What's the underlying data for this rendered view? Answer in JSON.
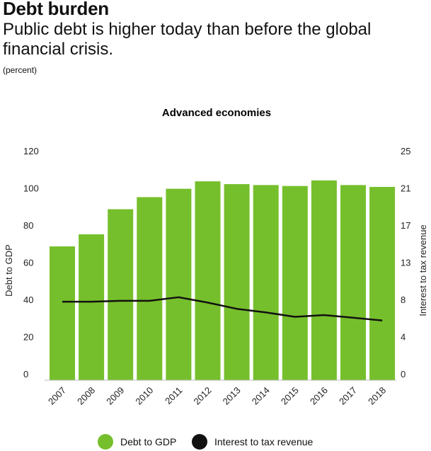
{
  "header": {
    "title": "Debt burden",
    "subtitle": "Public debt is higher today than before the global financial crisis.",
    "unit": "(percent)"
  },
  "colors": {
    "bar": "#76bf2c",
    "line": "#111111"
  },
  "chart_data": {
    "type": "bar",
    "title": "Advanced economies",
    "categories": [
      "2007",
      "2008",
      "2009",
      "2010",
      "2011",
      "2012",
      "2013",
      "2014",
      "2015",
      "2016",
      "2017",
      "2018"
    ],
    "series": [
      {
        "name": "Debt to GDP",
        "type": "bar",
        "axis": "left",
        "values": [
          72,
          78.5,
          92,
          98.5,
          103,
          107,
          105.5,
          105,
          104.5,
          107.5,
          105,
          104
        ]
      },
      {
        "name": "Interest to tax revenue",
        "type": "line",
        "axis": "right",
        "values": [
          8.8,
          8.8,
          8.9,
          8.9,
          9.3,
          8.7,
          8.0,
          7.6,
          7.1,
          7.3,
          7.0,
          6.7
        ]
      }
    ],
    "ylabel": "Debt to GDP",
    "ylim": [
      0,
      120
    ],
    "yticks": [
      "0",
      "20",
      "40",
      "60",
      "80",
      "100",
      "120"
    ],
    "y2label": "Interest to tax revenue",
    "y2lim": [
      0,
      25
    ],
    "y2ticks": [
      "0",
      "4",
      "8",
      "13",
      "17",
      "21",
      "25"
    ],
    "grid": false,
    "legend": "bottom"
  }
}
